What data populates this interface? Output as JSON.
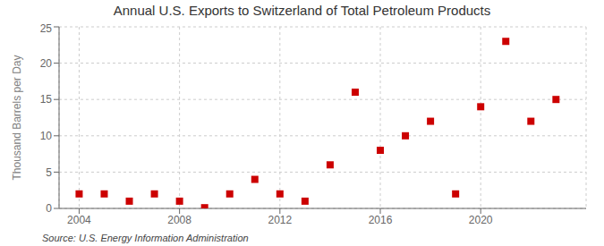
{
  "chart_data": {
    "type": "scatter",
    "title": "Annual U.S. Exports to Switzerland of Total Petroleum Products",
    "ylabel": "Thousand Barrels per Day",
    "annotations": [
      "Source: U.S. Energy Information Administration"
    ],
    "x": [
      2004,
      2005,
      2006,
      2007,
      2008,
      2009,
      2010,
      2011,
      2012,
      2013,
      2014,
      2015,
      2016,
      2017,
      2018,
      2019,
      2020,
      2021,
      2022,
      2023
    ],
    "values": [
      2,
      2,
      1,
      2,
      1,
      0.1,
      2,
      4,
      2,
      1,
      6,
      16,
      8,
      10,
      12,
      2,
      14,
      23,
      12,
      15
    ],
    "color": "#cc0000",
    "marker": "square",
    "xlim": [
      2003.2,
      2024.2
    ],
    "xticks": [
      2004,
      2008,
      2012,
      2016,
      2020
    ],
    "ylim": [
      0,
      25
    ],
    "yticks": [
      0,
      5,
      10,
      15,
      20,
      25
    ],
    "grid": true
  }
}
